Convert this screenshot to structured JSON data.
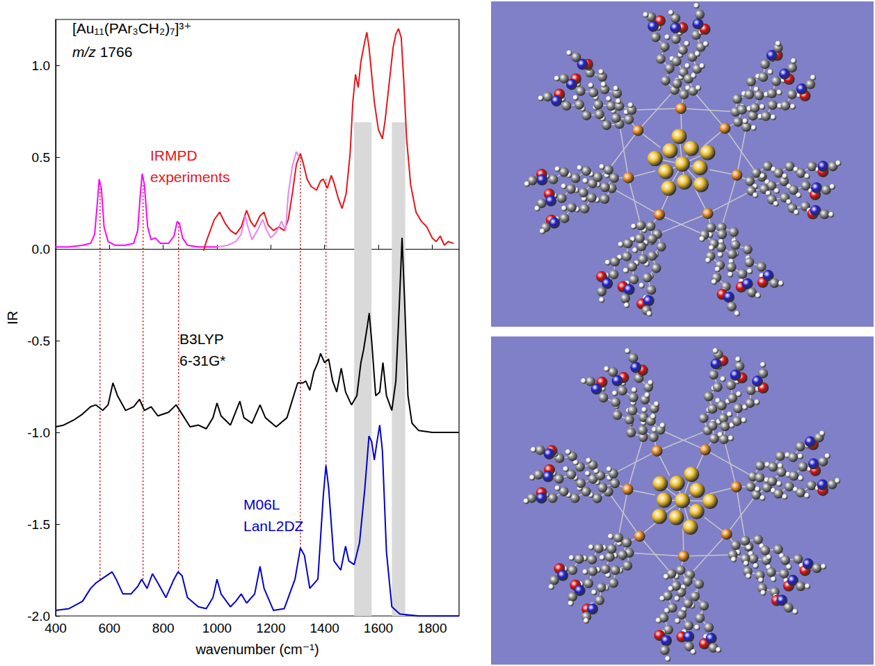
{
  "chart_data": {
    "type": "line",
    "title": "[Au₁₁(PAr₃CH₂)₇]³⁺",
    "subtitle": "m/z 1766",
    "x_label": "wavenumber (cm⁻¹)",
    "y_label": "IR",
    "xlim": [
      400,
      1900
    ],
    "xticks": [
      400,
      600,
      800,
      1000,
      1200,
      1400,
      1600,
      1800
    ],
    "ylim": [
      -2.0,
      1.25
    ],
    "yticks": [
      {
        "value": -2.0,
        "label": "-2.0"
      },
      -1.5,
      {
        "value": -1.0,
        "label": "-1.0"
      },
      -0.5,
      {
        "value": 0.0,
        "label": "0.0"
      },
      0.5,
      {
        "value": 1.0,
        "label": "1.0"
      }
    ],
    "grid": false,
    "annotations": [
      {
        "text": "IRMPD experiments",
        "color": "#e8141a"
      },
      {
        "text": "B3LYP 6-31G*",
        "color": "#000000"
      },
      {
        "text": "M06L LanL2DZ",
        "color": "#0000cc"
      }
    ],
    "bands": [
      {
        "x": [
          1510,
          1575
        ],
        "y": [
          -2.0,
          0.69
        ]
      },
      {
        "x": [
          1650,
          1700
        ],
        "y": [
          -2.0,
          0.69
        ]
      }
    ],
    "vlines": [
      {
        "x": 565,
        "y": [
          -1.8,
          0.33
        ]
      },
      {
        "x": 725,
        "y": [
          -1.8,
          0.35
        ]
      },
      {
        "x": 857,
        "y": [
          -1.76,
          0.14
        ]
      },
      {
        "x": 1310,
        "y": [
          -1.63,
          0.5
        ]
      },
      {
        "x": 1405,
        "y": [
          -1.18,
          0.38
        ]
      }
    ],
    "series": [
      {
        "color": "#ff00ff",
        "x": [
          400,
          450,
          500,
          530,
          545,
          555,
          562,
          570,
          580,
          595,
          620,
          660,
          690,
          705,
          715,
          722,
          730,
          742,
          755,
          770,
          790,
          820,
          840,
          852,
          860,
          872,
          890,
          930,
          970,
          1000
        ],
        "values": [
          0.01,
          0.01,
          0.02,
          0.03,
          0.08,
          0.25,
          0.38,
          0.33,
          0.12,
          0.04,
          0.02,
          0.02,
          0.03,
          0.1,
          0.3,
          0.41,
          0.35,
          0.12,
          0.05,
          0.06,
          0.03,
          0.03,
          0.07,
          0.15,
          0.14,
          0.06,
          0.02,
          0.01,
          0.01,
          0.01
        ]
      },
      {
        "color": "#e8141a",
        "x": [
          950,
          960,
          975,
          990,
          1010,
          1030,
          1050,
          1070,
          1090,
          1110,
          1125,
          1140,
          1160,
          1175,
          1190,
          1210,
          1230,
          1250,
          1265,
          1280,
          1295,
          1310,
          1320,
          1335,
          1350,
          1370,
          1385,
          1395,
          1410,
          1425,
          1435,
          1450,
          1465,
          1480,
          1495,
          1505,
          1515,
          1525,
          1535,
          1548,
          1557,
          1565,
          1575,
          1585,
          1600,
          1615,
          1625,
          1640,
          1655,
          1665,
          1675,
          1685,
          1695,
          1705,
          1720,
          1740,
          1760,
          1780,
          1800,
          1815,
          1830,
          1845,
          1860,
          1880
        ],
        "values": [
          -0.01,
          0.04,
          0.1,
          0.16,
          0.2,
          0.14,
          0.1,
          0.08,
          0.12,
          0.21,
          0.15,
          0.12,
          0.18,
          0.2,
          0.13,
          0.1,
          0.12,
          0.1,
          0.16,
          0.3,
          0.46,
          0.52,
          0.47,
          0.38,
          0.34,
          0.32,
          0.37,
          0.38,
          0.33,
          0.4,
          0.36,
          0.28,
          0.22,
          0.3,
          0.52,
          0.8,
          0.95,
          0.88,
          1.02,
          1.12,
          1.18,
          1.1,
          0.95,
          0.8,
          0.65,
          0.6,
          0.7,
          0.9,
          1.1,
          1.17,
          1.2,
          1.15,
          0.9,
          0.6,
          0.35,
          0.2,
          0.15,
          0.12,
          0.06,
          0.04,
          0.07,
          0.02,
          0.04,
          0.03
        ]
      },
      {
        "color": "#ee82ee",
        "x": [
          1000,
          1040,
          1070,
          1090,
          1105,
          1115,
          1130,
          1150,
          1170,
          1185,
          1200,
          1220,
          1240,
          1255,
          1265,
          1280,
          1295,
          1305
        ],
        "values": [
          0.01,
          0.02,
          0.04,
          0.08,
          0.18,
          0.12,
          0.05,
          0.1,
          0.16,
          0.1,
          0.06,
          0.09,
          0.15,
          0.1,
          0.3,
          0.45,
          0.53,
          0.5
        ]
      },
      {
        "color": "#000000",
        "x": [
          400,
          430,
          470,
          500,
          530,
          550,
          575,
          595,
          613,
          630,
          660,
          690,
          712,
          730,
          755,
          780,
          820,
          848,
          870,
          900,
          930,
          960,
          985,
          1000,
          1015,
          1050,
          1085,
          1100,
          1130,
          1160,
          1180,
          1220,
          1260,
          1285,
          1300,
          1320,
          1330,
          1345,
          1360,
          1375,
          1385,
          1400,
          1415,
          1430,
          1445,
          1462,
          1478,
          1500,
          1520,
          1535,
          1545,
          1558,
          1566,
          1575,
          1590,
          1605,
          1617,
          1630,
          1650,
          1665,
          1678,
          1688,
          1698,
          1710,
          1725,
          1750,
          1800,
          1900
        ],
        "values": [
          -0.97,
          -0.96,
          -0.93,
          -0.9,
          -0.86,
          -0.85,
          -0.88,
          -0.85,
          -0.73,
          -0.8,
          -0.88,
          -0.86,
          -0.82,
          -0.88,
          -0.86,
          -0.91,
          -0.89,
          -0.85,
          -0.9,
          -0.97,
          -0.96,
          -0.98,
          -0.92,
          -0.84,
          -0.91,
          -0.96,
          -0.83,
          -0.92,
          -0.95,
          -0.85,
          -0.92,
          -0.97,
          -0.92,
          -0.8,
          -0.73,
          -0.73,
          -0.72,
          -0.77,
          -0.67,
          -0.62,
          -0.57,
          -0.62,
          -0.6,
          -0.72,
          -0.78,
          -0.65,
          -0.78,
          -0.85,
          -0.8,
          -0.62,
          -0.55,
          -0.43,
          -0.35,
          -0.5,
          -0.8,
          -0.78,
          -0.62,
          -0.8,
          -0.88,
          -0.72,
          -0.3,
          0.06,
          -0.3,
          -0.8,
          -0.95,
          -0.99,
          -1.0,
          -1.0
        ]
      },
      {
        "color": "#0000cc",
        "x": [
          400,
          450,
          500,
          530,
          550,
          570,
          590,
          610,
          625,
          650,
          680,
          705,
          720,
          740,
          760,
          780,
          810,
          840,
          855,
          870,
          890,
          930,
          960,
          985,
          1000,
          1015,
          1050,
          1070,
          1090,
          1110,
          1140,
          1160,
          1175,
          1210,
          1250,
          1290,
          1310,
          1325,
          1345,
          1375,
          1395,
          1405,
          1415,
          1435,
          1460,
          1478,
          1490,
          1510,
          1530,
          1550,
          1565,
          1575,
          1585,
          1595,
          1605,
          1615,
          1630,
          1650,
          1680,
          1750,
          1900
        ],
        "values": [
          -1.97,
          -1.96,
          -1.92,
          -1.85,
          -1.82,
          -1.8,
          -1.78,
          -1.76,
          -1.8,
          -1.88,
          -1.88,
          -1.84,
          -1.8,
          -1.85,
          -1.77,
          -1.82,
          -1.9,
          -1.8,
          -1.76,
          -1.78,
          -1.9,
          -1.95,
          -1.96,
          -1.9,
          -1.8,
          -1.88,
          -1.95,
          -1.92,
          -1.88,
          -1.93,
          -1.88,
          -1.73,
          -1.85,
          -1.97,
          -1.96,
          -1.8,
          -1.63,
          -1.67,
          -1.85,
          -1.8,
          -1.35,
          -1.18,
          -1.3,
          -1.7,
          -1.75,
          -1.62,
          -1.7,
          -1.72,
          -1.6,
          -1.3,
          -1.02,
          -1.05,
          -1.15,
          -1.05,
          -0.96,
          -1.1,
          -1.65,
          -1.95,
          -1.99,
          -2.0,
          -2.0
        ]
      }
    ]
  }
}
